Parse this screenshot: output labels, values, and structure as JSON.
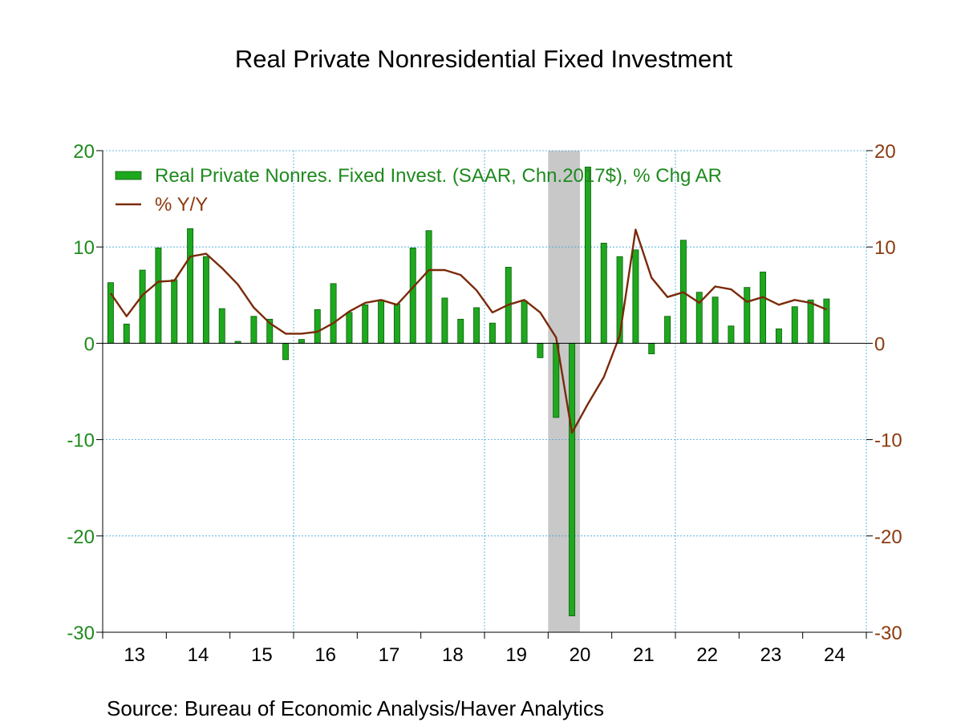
{
  "title": "Real Private Nonresidential Fixed Investment",
  "source": "Source:  Bureau of Economic Analysis/Haver Analytics",
  "colors": {
    "bar_fill": "#1ea81e",
    "bar_edge": "#0b5e0b",
    "line": "#7a2a0a",
    "left_axis": "#1e8a1e",
    "right_axis": "#8b3a0f",
    "grid": "#3aa6d8",
    "recession": "#c8c8c8"
  },
  "chart_data": {
    "type": "bar+line",
    "title": "Real Private Nonresidential Fixed Investment",
    "x_start_year": 2013,
    "x_end_year": 2024,
    "periods_per_year": 4,
    "x_tick_labels": [
      "13",
      "14",
      "15",
      "16",
      "17",
      "18",
      "19",
      "20",
      "21",
      "22",
      "23",
      "24"
    ],
    "left_axis": {
      "ylim": [
        -30,
        20
      ],
      "ticks": [
        20,
        10,
        0,
        -10,
        -20,
        -30
      ],
      "labels": [
        "20",
        "10",
        "0",
        "-10",
        "-20",
        "-30"
      ]
    },
    "right_axis": {
      "ylim": [
        -30,
        20
      ],
      "ticks": [
        20,
        10,
        0,
        -10,
        -20,
        -30
      ],
      "labels": [
        "20",
        "10",
        "0",
        "-10",
        "-20",
        "-30"
      ]
    },
    "recession_shading": {
      "start": "2020Q1",
      "end": "2020Q2",
      "start_index": 28,
      "end_index": 29
    },
    "legend": [
      "Real Private Nonres. Fixed Invest. (SAAR, Chn.2017$), % Chg AR",
      "% Y/Y"
    ],
    "series": [
      {
        "name": "Real Private Nonres. Fixed Invest. (SAAR, Chn.2017$), % Chg AR",
        "type": "bar",
        "axis": "left",
        "values": [
          6.3,
          2.0,
          7.6,
          9.9,
          6.6,
          11.9,
          9.0,
          3.6,
          0.2,
          2.8,
          2.5,
          -1.7,
          0.4,
          3.5,
          6.2,
          3.2,
          4.0,
          4.5,
          4.1,
          9.9,
          11.7,
          4.7,
          2.5,
          3.7,
          2.1,
          7.9,
          4.4,
          -1.5,
          -7.7,
          -28.3,
          18.3,
          10.4,
          9.0,
          9.7,
          -1.1,
          2.8,
          10.7,
          5.3,
          4.8,
          1.8,
          5.8,
          7.4,
          1.5,
          3.8,
          4.5,
          4.6
        ]
      },
      {
        "name": "% Y/Y",
        "type": "line",
        "axis": "right",
        "values": [
          5.2,
          2.8,
          5.0,
          6.4,
          6.5,
          9.0,
          9.3,
          7.8,
          6.1,
          3.7,
          2.1,
          1.0,
          1.0,
          1.2,
          2.1,
          3.3,
          4.2,
          4.5,
          4.0,
          5.8,
          7.6,
          7.6,
          7.1,
          5.5,
          3.2,
          4.0,
          4.5,
          3.2,
          0.6,
          -9.3,
          -6.3,
          -3.5,
          0.8,
          11.8,
          6.8,
          4.8,
          5.3,
          4.2,
          5.9,
          5.6,
          4.3,
          4.8,
          4.0,
          4.5,
          4.2,
          3.5
        ]
      }
    ]
  }
}
